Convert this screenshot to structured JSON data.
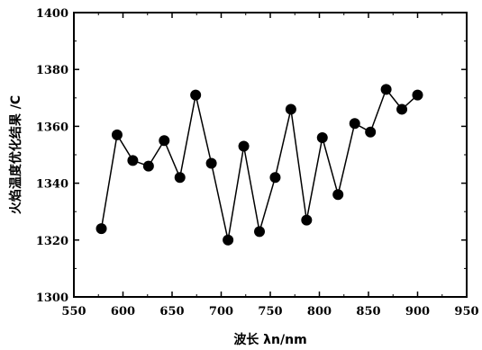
{
  "chart_data": {
    "type": "line",
    "title": "",
    "xlabel": "波长 λn/nm",
    "ylabel": "火焰温度优化结果 /C",
    "xlim": [
      550,
      950
    ],
    "ylim": [
      1300,
      1400
    ],
    "xticks": [
      550,
      600,
      650,
      700,
      750,
      800,
      850,
      900,
      950
    ],
    "yticks": [
      1300,
      1320,
      1340,
      1360,
      1380,
      1400
    ],
    "grid": false,
    "legend": "none",
    "series": [
      {
        "color": "#000000",
        "marker": "circle",
        "x": [
          578,
          594,
          610,
          626,
          642,
          658,
          674,
          690,
          707,
          723,
          739,
          755,
          771,
          787,
          803,
          819,
          836,
          852,
          868,
          884,
          900
        ],
        "y": [
          1324,
          1357,
          1348,
          1346,
          1355,
          1342,
          1371,
          1347,
          1320,
          1353,
          1323,
          1342,
          1366,
          1327,
          1356,
          1336,
          1361,
          1358,
          1373,
          1366,
          1371
        ]
      }
    ]
  }
}
